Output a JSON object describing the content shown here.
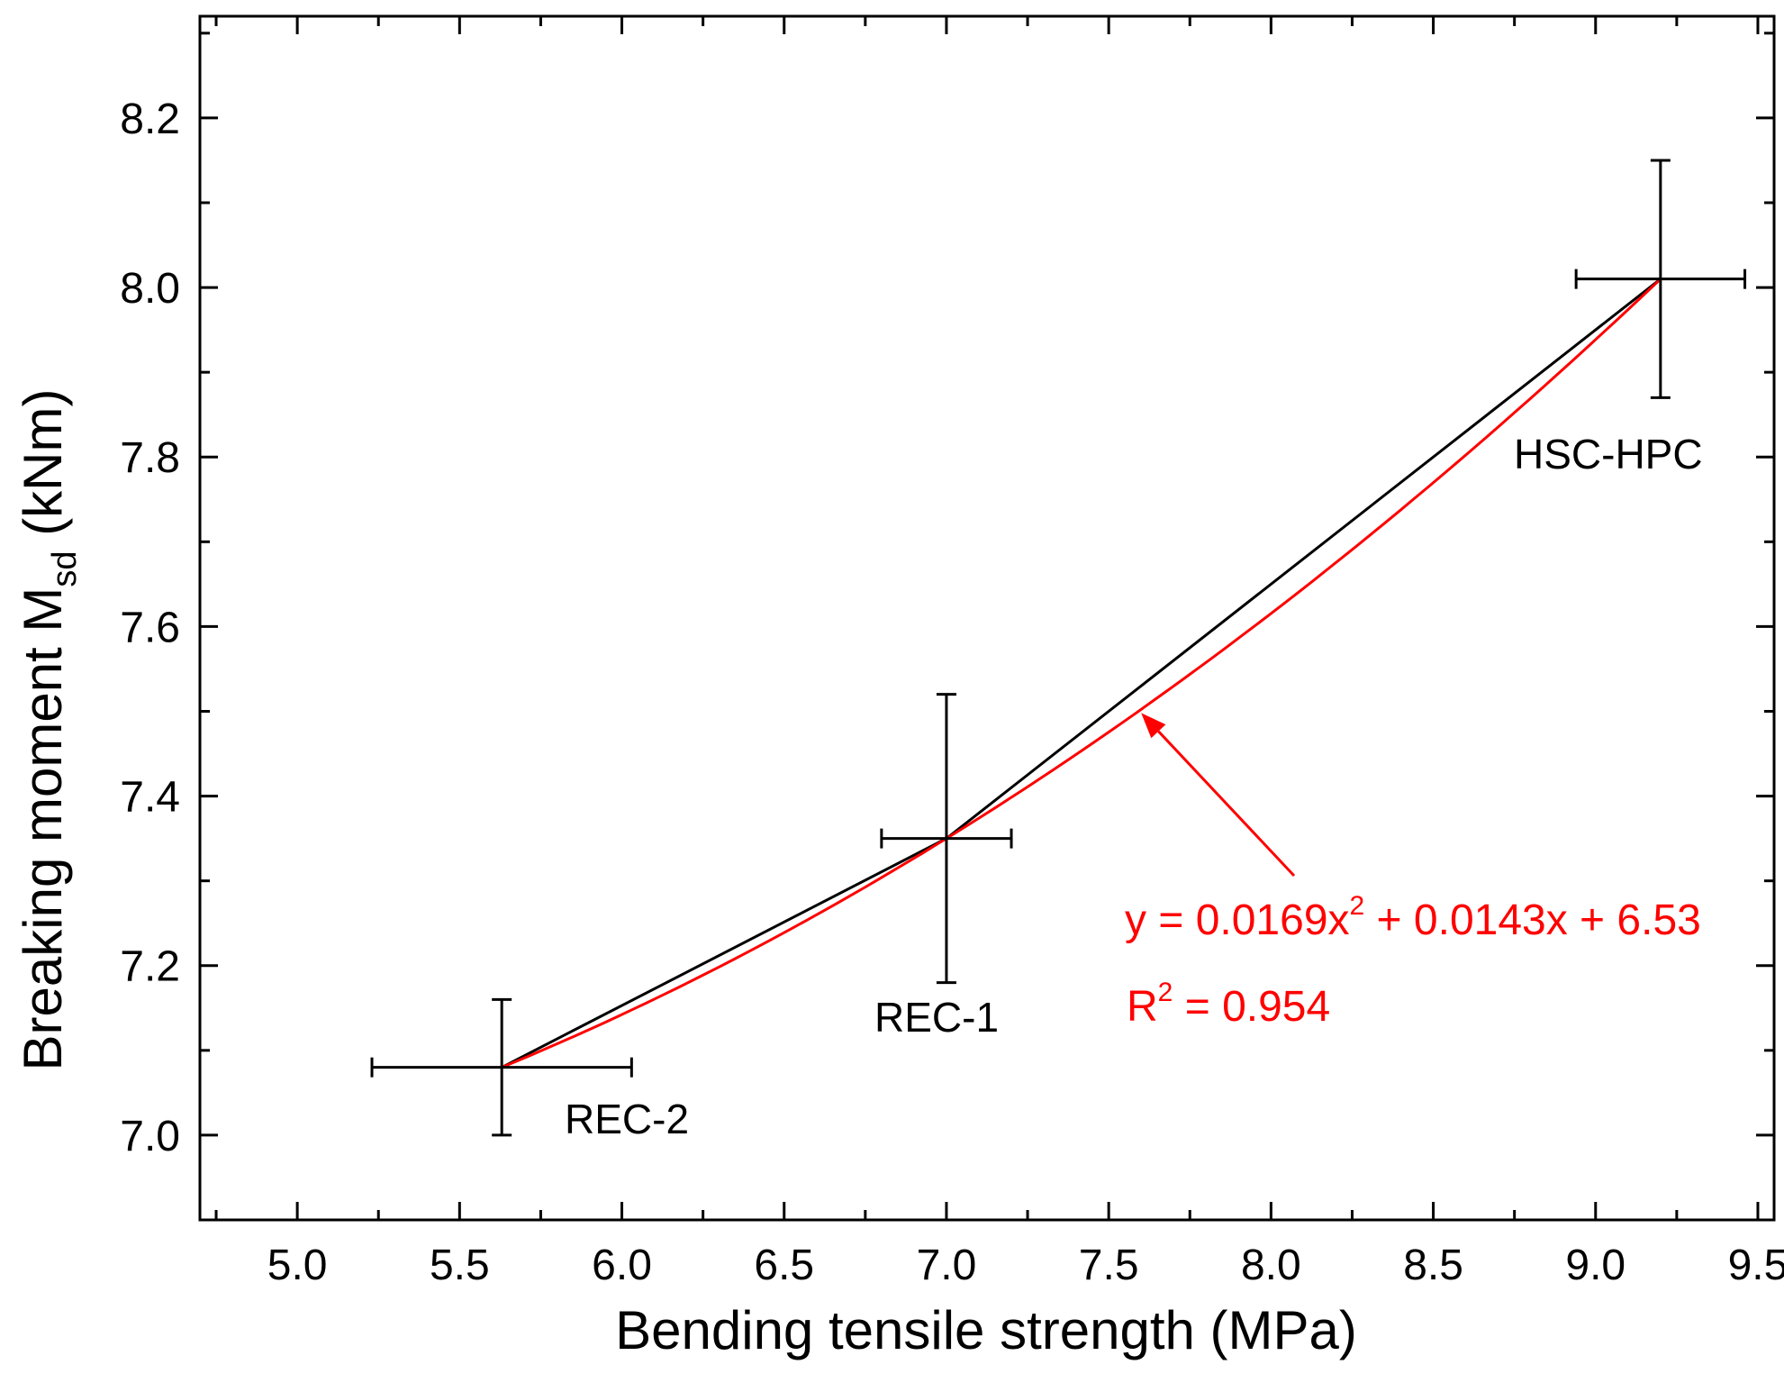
{
  "chart_data": {
    "type": "line",
    "title": "",
    "xlabel": "Bending tensile strength (MPa)",
    "ylabel_main": "Breaking moment M",
    "ylabel_sub": "sd",
    "ylabel_unit": " (kNm)",
    "xlim": [
      4.7,
      9.55
    ],
    "ylim": [
      6.9,
      8.32
    ],
    "xticks": [
      "5.0",
      "5.5",
      "6.0",
      "6.5",
      "7.0",
      "7.5",
      "8.0",
      "8.5",
      "9.0",
      "9.5"
    ],
    "yticks": [
      "7.0",
      "7.2",
      "7.4",
      "7.6",
      "7.8",
      "8.0",
      "8.2"
    ],
    "points": [
      {
        "label": "REC-2",
        "x": 5.63,
        "y": 7.08,
        "xerr": [
          5.23,
          6.03
        ],
        "yerr": [
          7.0,
          7.16
        ]
      },
      {
        "label": "REC-1",
        "x": 7.0,
        "y": 7.35,
        "xerr": [
          6.8,
          7.2
        ],
        "yerr": [
          7.18,
          7.52
        ]
      },
      {
        "label": "HSC-HPC",
        "x": 9.2,
        "y": 8.01,
        "xerr": [
          8.94,
          9.46
        ],
        "yerr": [
          7.87,
          8.15
        ]
      }
    ],
    "series": [
      {
        "name": "data",
        "color": "#000000"
      },
      {
        "name": "fit",
        "color": "#ff0000",
        "a": 0.0169,
        "b": 0.0143,
        "c": 6.53
      }
    ],
    "annotation": {
      "equation_prefix": "y = 0.0169x",
      "equation_exp": "2",
      "equation_suffix": " + 0.0143x + 6.53",
      "r2_prefix": "R",
      "r2_exp": "2",
      "r2_suffix": " = 0.954",
      "color": "#ff0000"
    }
  }
}
